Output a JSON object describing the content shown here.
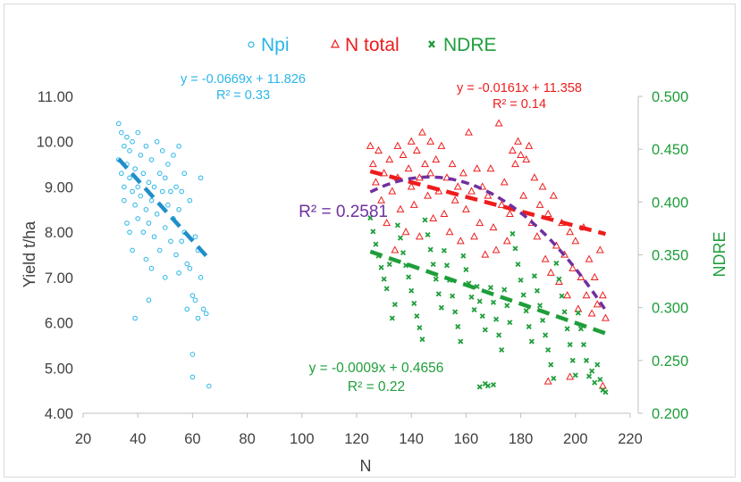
{
  "chart_data": {
    "type": "scatter",
    "xlabel": "N",
    "ylabel": "Yield t/ha",
    "y2label": "NDRE",
    "xlim": [
      20,
      220
    ],
    "ylim": [
      4.0,
      11.0
    ],
    "y2lim": [
      0.2,
      0.5
    ],
    "xticks": [
      "20",
      "40",
      "60",
      "80",
      "100",
      "120",
      "140",
      "160",
      "180",
      "200",
      "220"
    ],
    "yticks": [
      "4.00",
      "5.00",
      "6.00",
      "7.00",
      "8.00",
      "9.00",
      "10.00",
      "11.00"
    ],
    "y2ticks": [
      "0.200",
      "0.250",
      "0.300",
      "0.350",
      "0.400",
      "0.450",
      "0.500"
    ],
    "grid": false,
    "legend_position": "top-center",
    "colors": {
      "npi": "#29b6e8",
      "ntotal": "#ee1c1c",
      "ndre": "#1e9e3a",
      "poly": "#7030a0",
      "axis": "#595959"
    },
    "series": [
      {
        "name": "Npi",
        "axis": "left",
        "marker": "circle",
        "trend": {
          "type": "linear",
          "slope": -0.0669,
          "intercept": 11.826,
          "x_range": [
            33,
            66
          ]
        },
        "equation": "y = -0.0669x + 11.826",
        "r2": "R² = 0.33",
        "points": [
          [
            33,
            10.4
          ],
          [
            34,
            10.2
          ],
          [
            33,
            9.6
          ],
          [
            34,
            9.3
          ],
          [
            35,
            9.9
          ],
          [
            35,
            9.0
          ],
          [
            36,
            10.1
          ],
          [
            36,
            9.5
          ],
          [
            35,
            8.7
          ],
          [
            36,
            8.2
          ],
          [
            37,
            9.8
          ],
          [
            37,
            9.2
          ],
          [
            38,
            10.0
          ],
          [
            38,
            8.9
          ],
          [
            37,
            8.0
          ],
          [
            38,
            7.6
          ],
          [
            39,
            9.4
          ],
          [
            39,
            8.6
          ],
          [
            40,
            10.2
          ],
          [
            40,
            9.0
          ],
          [
            40,
            8.3
          ],
          [
            39,
            6.1
          ],
          [
            41,
            9.7
          ],
          [
            41,
            8.8
          ],
          [
            42,
            9.3
          ],
          [
            42,
            8.0
          ],
          [
            43,
            9.9
          ],
          [
            43,
            8.5
          ],
          [
            43,
            7.4
          ],
          [
            44,
            9.1
          ],
          [
            44,
            8.2
          ],
          [
            45,
            9.6
          ],
          [
            45,
            8.7
          ],
          [
            45,
            7.2
          ],
          [
            44,
            6.5
          ],
          [
            46,
            9.0
          ],
          [
            46,
            7.9
          ],
          [
            47,
            10.0
          ],
          [
            47,
            8.4
          ],
          [
            48,
            9.3
          ],
          [
            48,
            7.6
          ],
          [
            49,
            9.8
          ],
          [
            49,
            8.9
          ],
          [
            50,
            9.2
          ],
          [
            50,
            8.1
          ],
          [
            50,
            7.0
          ],
          [
            51,
            9.5
          ],
          [
            51,
            8.6
          ],
          [
            52,
            8.9
          ],
          [
            52,
            7.8
          ],
          [
            53,
            9.7
          ],
          [
            53,
            8.3
          ],
          [
            54,
            9.0
          ],
          [
            54,
            7.5
          ],
          [
            55,
            9.9
          ],
          [
            55,
            8.5
          ],
          [
            55,
            7.1
          ],
          [
            56,
            8.9
          ],
          [
            56,
            7.8
          ],
          [
            57,
            9.3
          ],
          [
            57,
            8.0
          ],
          [
            58,
            7.3
          ],
          [
            58,
            6.3
          ],
          [
            59,
            8.7
          ],
          [
            59,
            7.2
          ],
          [
            60,
            6.6
          ],
          [
            60,
            5.3
          ],
          [
            60,
            4.8
          ],
          [
            61,
            7.9
          ],
          [
            61,
            6.5
          ],
          [
            62,
            7.6
          ],
          [
            62,
            6.1
          ],
          [
            63,
            9.2
          ],
          [
            63,
            7.0
          ],
          [
            64,
            6.3
          ],
          [
            65,
            6.2
          ],
          [
            66,
            4.6
          ]
        ]
      },
      {
        "name": "N total",
        "axis": "left",
        "marker": "triangle",
        "trend": {
          "type": "linear",
          "slope": -0.0161,
          "intercept": 11.358,
          "x_range": [
            125,
            211
          ]
        },
        "equation": "y = -0.0161x + 11.358",
        "r2": "R² = 0.14",
        "points": [
          [
            125,
            9.9
          ],
          [
            126,
            9.5
          ],
          [
            127,
            9.1
          ],
          [
            128,
            9.8
          ],
          [
            129,
            8.7
          ],
          [
            130,
            9.3
          ],
          [
            131,
            8.2
          ],
          [
            132,
            9.6
          ],
          [
            133,
            8.9
          ],
          [
            134,
            7.6
          ],
          [
            135,
            9.9
          ],
          [
            135,
            9.2
          ],
          [
            136,
            8.5
          ],
          [
            137,
            9.7
          ],
          [
            138,
            8.0
          ],
          [
            139,
            9.4
          ],
          [
            140,
            9.0
          ],
          [
            140,
            10.0
          ],
          [
            141,
            8.6
          ],
          [
            142,
            9.8
          ],
          [
            143,
            9.2
          ],
          [
            143,
            7.9
          ],
          [
            144,
            10.2
          ],
          [
            145,
            9.5
          ],
          [
            146,
            8.8
          ],
          [
            147,
            10.0
          ],
          [
            147,
            9.3
          ],
          [
            148,
            8.3
          ],
          [
            149,
            9.6
          ],
          [
            150,
            8.9
          ],
          [
            151,
            9.9
          ],
          [
            152,
            8.4
          ],
          [
            153,
            9.2
          ],
          [
            154,
            8.0
          ],
          [
            155,
            9.5
          ],
          [
            156,
            8.7
          ],
          [
            157,
            9.0
          ],
          [
            158,
            7.8
          ],
          [
            159,
            9.3
          ],
          [
            160,
            8.5
          ],
          [
            161,
            10.2
          ],
          [
            162,
            8.9
          ],
          [
            163,
            7.9
          ],
          [
            164,
            9.4
          ],
          [
            165,
            8.2
          ],
          [
            166,
            9.0
          ],
          [
            167,
            7.5
          ],
          [
            168,
            8.8
          ],
          [
            169,
            9.4
          ],
          [
            170,
            8.1
          ],
          [
            171,
            7.6
          ],
          [
            172,
            10.4
          ],
          [
            173,
            8.6
          ],
          [
            174,
            9.1
          ],
          [
            175,
            7.8
          ],
          [
            176,
            8.4
          ],
          [
            177,
            9.8
          ],
          [
            178,
            9.5
          ],
          [
            179,
            10.0
          ],
          [
            180,
            9.7
          ],
          [
            181,
            8.8
          ],
          [
            182,
            9.6
          ],
          [
            183,
            9.9
          ],
          [
            184,
            8.2
          ],
          [
            185,
            9.2
          ],
          [
            186,
            7.9
          ],
          [
            187,
            8.6
          ],
          [
            188,
            9.0
          ],
          [
            189,
            7.4
          ],
          [
            190,
            8.4
          ],
          [
            191,
            7.1
          ],
          [
            192,
            8.8
          ],
          [
            193,
            7.7
          ],
          [
            194,
            6.9
          ],
          [
            195,
            8.2
          ],
          [
            196,
            7.5
          ],
          [
            197,
            6.6
          ],
          [
            198,
            8.0
          ],
          [
            199,
            7.2
          ],
          [
            200,
            7.8
          ],
          [
            201,
            6.3
          ],
          [
            202,
            7.0
          ],
          [
            203,
            8.1
          ],
          [
            204,
            6.6
          ],
          [
            205,
            7.4
          ],
          [
            206,
            6.2
          ],
          [
            207,
            7.0
          ],
          [
            208,
            6.4
          ],
          [
            209,
            7.6
          ],
          [
            210,
            6.6
          ],
          [
            211,
            6.1
          ],
          [
            190,
            4.7
          ],
          [
            198,
            4.8
          ],
          [
            210,
            4.6
          ]
        ]
      },
      {
        "name": "NDRE",
        "axis": "right",
        "marker": "x",
        "trend": {
          "type": "linear",
          "slope": -0.0009,
          "intercept": 0.4656,
          "x_range": [
            125,
            211
          ]
        },
        "equation": "y = -0.0009x + 0.4656",
        "r2": "R² = 0.22",
        "points": [
          [
            125,
            0.385
          ],
          [
            126,
            0.372
          ],
          [
            127,
            0.36
          ],
          [
            128,
            0.349
          ],
          [
            129,
            0.338
          ],
          [
            130,
            0.327
          ],
          [
            131,
            0.318
          ],
          [
            132,
            0.341
          ],
          [
            133,
            0.29
          ],
          [
            134,
            0.303
          ],
          [
            135,
            0.378
          ],
          [
            136,
            0.366
          ],
          [
            137,
            0.352
          ],
          [
            138,
            0.34
          ],
          [
            139,
            0.329
          ],
          [
            140,
            0.316
          ],
          [
            141,
            0.304
          ],
          [
            142,
            0.292
          ],
          [
            143,
            0.281
          ],
          [
            144,
            0.27
          ],
          [
            145,
            0.383
          ],
          [
            146,
            0.369
          ],
          [
            147,
            0.355
          ],
          [
            148,
            0.341
          ],
          [
            149,
            0.327
          ],
          [
            150,
            0.313
          ],
          [
            151,
            0.3
          ],
          [
            152,
            0.354
          ],
          [
            153,
            0.34
          ],
          [
            154,
            0.326
          ],
          [
            155,
            0.311
          ],
          [
            156,
            0.296
          ],
          [
            157,
            0.282
          ],
          [
            158,
            0.268
          ],
          [
            159,
            0.349
          ],
          [
            160,
            0.336
          ],
          [
            161,
            0.323
          ],
          [
            162,
            0.31
          ],
          [
            163,
            0.298
          ],
          [
            164,
            0.32
          ],
          [
            165,
            0.306
          ],
          [
            166,
            0.292
          ],
          [
            167,
            0.279
          ],
          [
            168,
            0.226
          ],
          [
            169,
            0.319
          ],
          [
            170,
            0.305
          ],
          [
            171,
            0.289
          ],
          [
            172,
            0.274
          ],
          [
            173,
            0.26
          ],
          [
            174,
            0.317
          ],
          [
            175,
            0.302
          ],
          [
            176,
            0.286
          ],
          [
            177,
            0.37
          ],
          [
            178,
            0.356
          ],
          [
            179,
            0.341
          ],
          [
            180,
            0.326
          ],
          [
            181,
            0.312
          ],
          [
            182,
            0.297
          ],
          [
            183,
            0.282
          ],
          [
            184,
            0.268
          ],
          [
            185,
            0.33
          ],
          [
            186,
            0.316
          ],
          [
            187,
            0.302
          ],
          [
            188,
            0.288
          ],
          [
            189,
            0.274
          ],
          [
            190,
            0.26
          ],
          [
            191,
            0.246
          ],
          [
            192,
            0.233
          ],
          [
            193,
            0.342
          ],
          [
            194,
            0.327
          ],
          [
            195,
            0.311
          ],
          [
            196,
            0.296
          ],
          [
            197,
            0.28
          ],
          [
            198,
            0.265
          ],
          [
            199,
            0.25
          ],
          [
            200,
            0.236
          ],
          [
            201,
            0.295
          ],
          [
            202,
            0.28
          ],
          [
            203,
            0.265
          ],
          [
            204,
            0.25
          ],
          [
            205,
            0.235
          ],
          [
            206,
            0.24
          ],
          [
            207,
            0.229
          ],
          [
            208,
            0.246
          ],
          [
            209,
            0.232
          ],
          [
            210,
            0.222
          ],
          [
            211,
            0.22
          ],
          [
            165,
            0.225
          ],
          [
            167,
            0.228
          ],
          [
            170,
            0.227
          ]
        ]
      }
    ],
    "polynomial_fit": {
      "series": "N total",
      "degree": 2,
      "x_range": [
        125,
        211
      ],
      "label": "R² = 0.2581"
    }
  }
}
